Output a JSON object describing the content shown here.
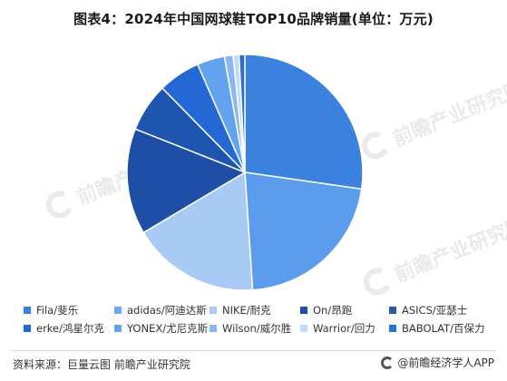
{
  "title": "图表4：2024年中国网球鞋TOP10品牌销量(单位：万元)",
  "watermark_text": "前瞻产业研究院",
  "chart_data": {
    "type": "pie",
    "title": "图表4：2024年中国网球鞋TOP10品牌销量(单位：万元)",
    "unit": "万元",
    "legend_position": "bottom",
    "slices": [
      {
        "label": "Fila/斐乐",
        "value": 27.4,
        "color": "#3b82e0"
      },
      {
        "label": "adidas/阿迪达斯",
        "value": 21.8,
        "color": "#5b9cec"
      },
      {
        "label": "NIKE/耐克",
        "value": 17.6,
        "color": "#a8caf5"
      },
      {
        "label": "On/昂跑",
        "value": 14.6,
        "color": "#1f4ea6"
      },
      {
        "label": "ASICS/亚瑟士",
        "value": 6.7,
        "color": "#1d55b0"
      },
      {
        "label": "erke/鸿星尔克",
        "value": 5.8,
        "color": "#2368d4"
      },
      {
        "label": "YONEX/尤尼克斯",
        "value": 3.8,
        "color": "#62a2ee"
      },
      {
        "label": "Wilson/威尔胜",
        "value": 1.2,
        "color": "#8ab8f2"
      },
      {
        "label": "Warrior/回力",
        "value": 0.8,
        "color": "#c4dbf8"
      },
      {
        "label": "BABOLAT/百保力",
        "value": 0.8,
        "color": "#2a6fd6"
      }
    ]
  },
  "legend_row1_colors": [
    "#3b82e0",
    "#6fa8ee",
    "#a8caf5",
    "#1f4ea6",
    "#2d5aa8"
  ],
  "footer": {
    "source": "资料来源：巨量云图 前瞻产业研究院",
    "brand": "@前瞻经济学人APP"
  }
}
